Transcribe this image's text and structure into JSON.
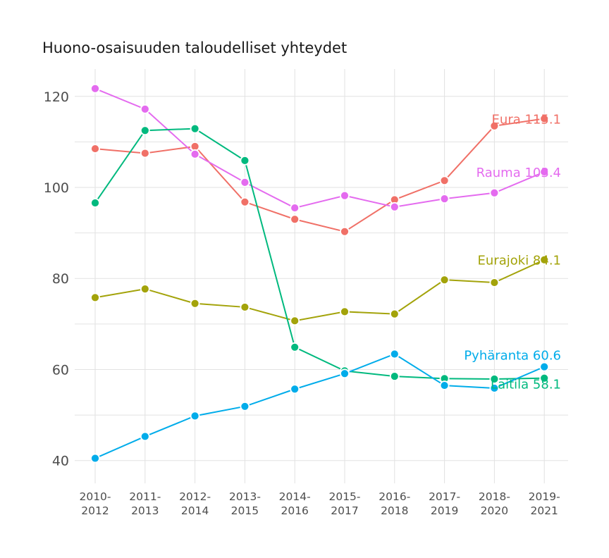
{
  "chart_data": {
    "type": "line",
    "title": "Huono-osaisuuden taloudelliset yhteydet",
    "xlabel": "",
    "ylabel": "",
    "categories": [
      [
        "2010-",
        "2012"
      ],
      [
        "2011-",
        "2013"
      ],
      [
        "2012-",
        "2014"
      ],
      [
        "2013-",
        "2015"
      ],
      [
        "2014-",
        "2016"
      ],
      [
        "2015-",
        "2017"
      ],
      [
        "2016-",
        "2018"
      ],
      [
        "2017-",
        "2019"
      ],
      [
        "2018-",
        "2020"
      ],
      [
        "2019-",
        "2021"
      ]
    ],
    "ylim": [
      35,
      126
    ],
    "yticks": [
      40,
      60,
      80,
      100,
      120
    ],
    "grid": true,
    "legend": "none (series labelled at line ends)",
    "series": [
      {
        "name": "Eura",
        "color": "#F07067",
        "end_label": "Eura 115.1",
        "values": [
          108.5,
          107.5,
          109.0,
          96.8,
          93.0,
          90.3,
          97.3,
          101.5,
          113.5,
          115.1
        ]
      },
      {
        "name": "Rauma",
        "color": "#E46BEF",
        "end_label": "Rauma 103.4",
        "values": [
          121.7,
          117.2,
          107.3,
          101.1,
          95.5,
          98.2,
          95.7,
          97.5,
          98.8,
          103.4
        ]
      },
      {
        "name": "Eurajoki",
        "color": "#A3A30A",
        "end_label": "Eurajoki 84.1",
        "values": [
          75.8,
          77.7,
          74.5,
          73.7,
          70.7,
          72.7,
          72.2,
          79.7,
          79.1,
          84.1
        ]
      },
      {
        "name": "Laitila",
        "color": "#00B97E",
        "end_label": "Laitila 58.1",
        "values": [
          96.6,
          112.5,
          112.9,
          105.9,
          64.9,
          59.7,
          58.5,
          58.0,
          57.9,
          58.1
        ]
      },
      {
        "name": "Pyhäranta",
        "color": "#00ACEA",
        "end_label": "Pyhäranta 60.6",
        "values": [
          40.5,
          45.3,
          49.8,
          51.9,
          55.7,
          59.1,
          63.4,
          56.5,
          55.9,
          60.6
        ]
      }
    ]
  }
}
